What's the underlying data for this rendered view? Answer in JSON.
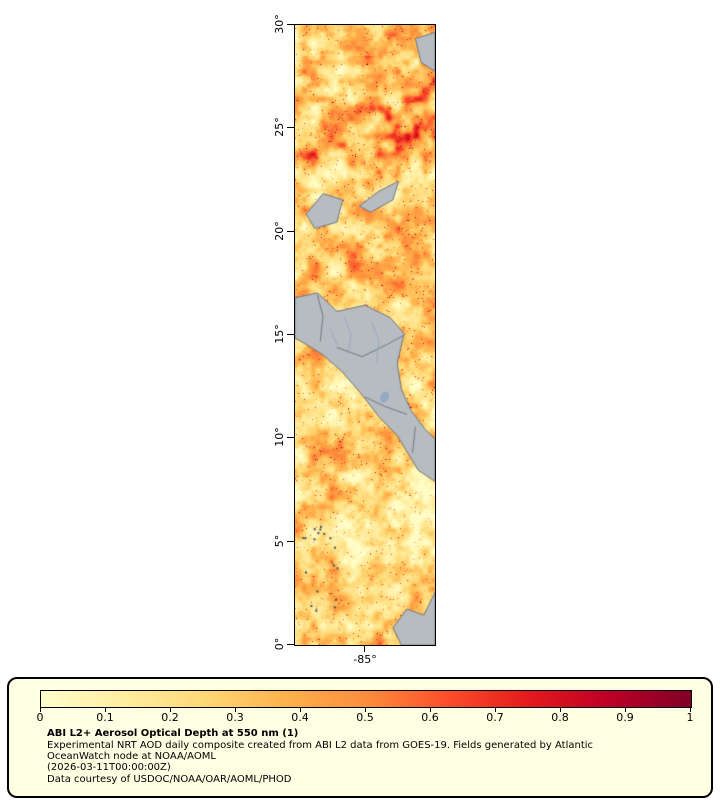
{
  "figure": {
    "lat_labels": [
      "30°",
      "25°",
      "20°",
      "15°",
      "10°",
      "5°",
      "0°"
    ],
    "lon_label": "-85°"
  },
  "colorbar": {
    "min": 0,
    "max": 1,
    "tick_labels": [
      "0",
      "0.1",
      "0.2",
      "0.3",
      "0.4",
      "0.5",
      "0.6",
      "0.7",
      "0.8",
      "0.9",
      "1"
    ],
    "gradient_stops": [
      "#ffffcc",
      "#ffeda0",
      "#fed976",
      "#feb24c",
      "#fd8d3c",
      "#fc4e2a",
      "#e31a1c",
      "#bd0026",
      "#800026"
    ]
  },
  "caption": {
    "title": "ABI L2+ Aerosol Optical Depth at 550 nm (1)",
    "lines": [
      "Experimental NRT AOD daily composite created from ABI L2 data from GOES-19. Fields generated by Atlantic",
      "OceanWatch node at NOAA/AOML",
      "(2026-03-11T00:00:00Z)",
      "Data courtesy of USDOC/NOAA/OAR/AOML/PHOD"
    ]
  },
  "map_colors": {
    "land": "#b7bcc1",
    "land_border": "#70787f",
    "water_line": "#93a9c4",
    "speck": "#44525f"
  }
}
